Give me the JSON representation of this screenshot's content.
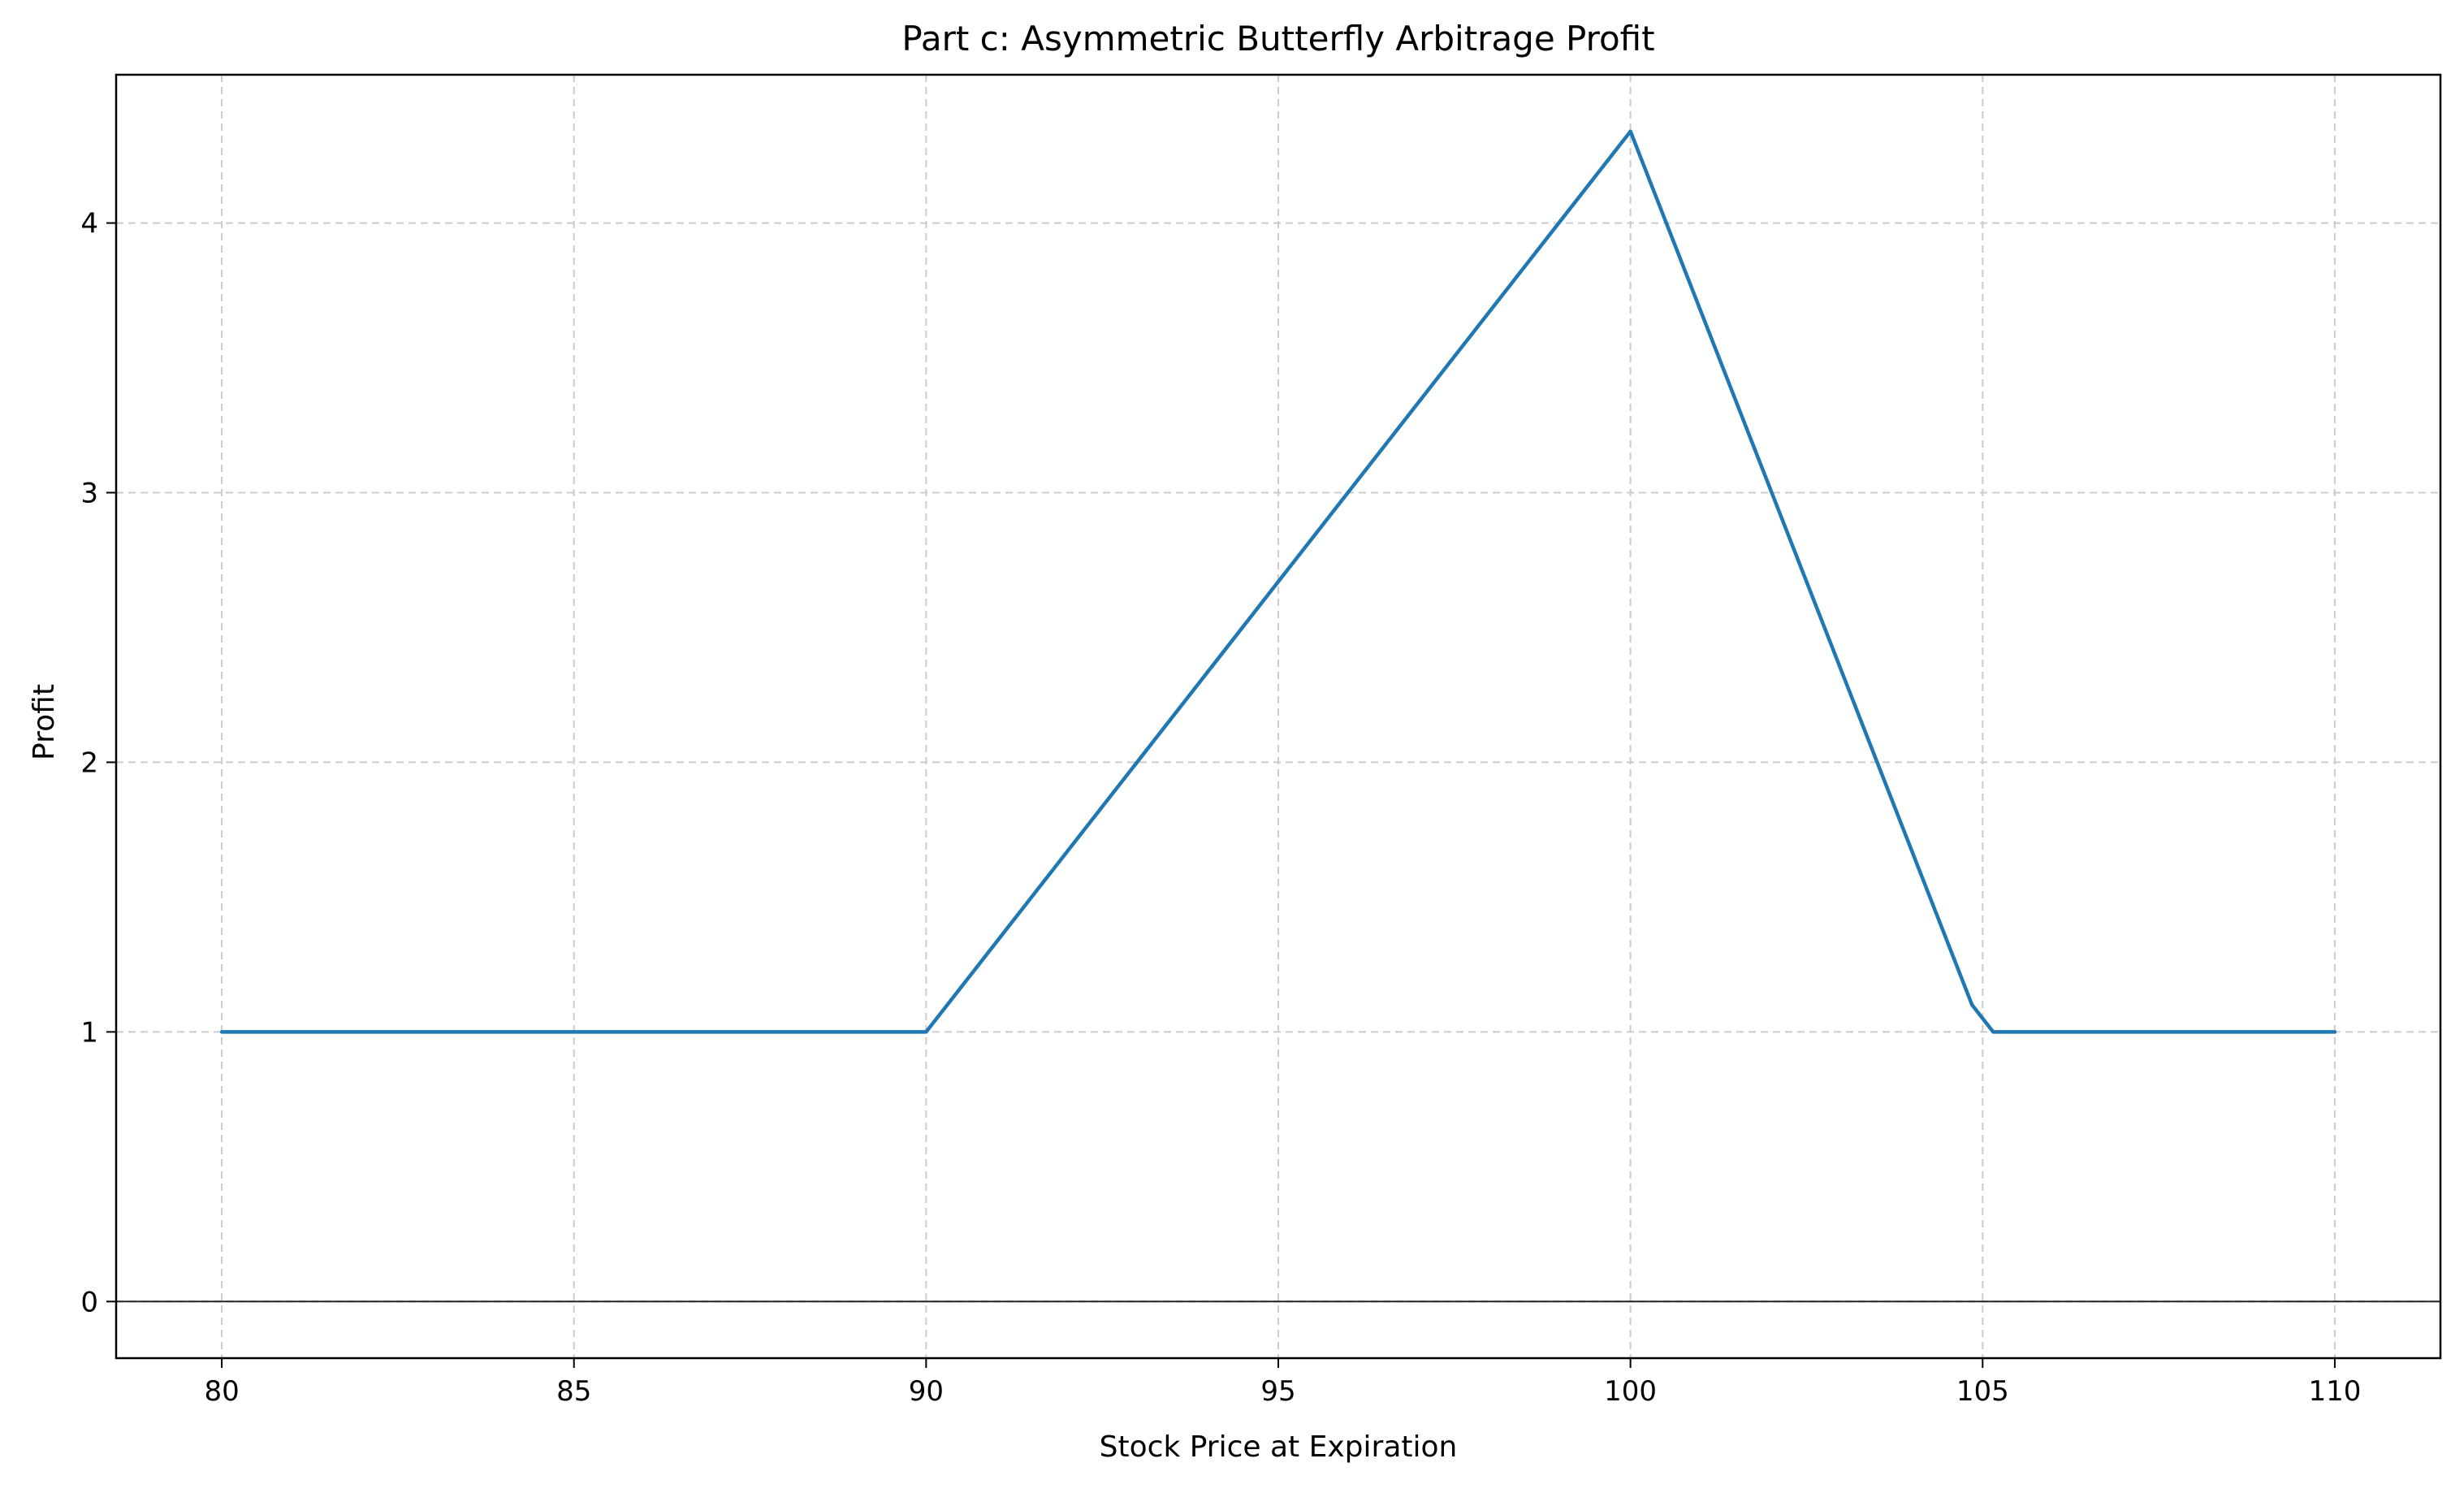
{
  "chart_data": {
    "type": "line",
    "title": "Part c: Asymmetric Butterfly Arbitrage Profit",
    "xlabel": "Stock Price at Expiration",
    "ylabel": "Profit",
    "xlim": [
      78.5,
      111.5
    ],
    "ylim": [
      -0.21,
      4.55
    ],
    "xticks": [
      80,
      85,
      90,
      95,
      100,
      105,
      110
    ],
    "yticks": [
      0,
      1,
      2,
      3,
      4
    ],
    "grid": true,
    "grid_style": "dashed",
    "zero_line": true,
    "series": [
      {
        "color": "#1f77b4",
        "x": [
          80,
          90,
          100,
          104.85,
          105.15,
          110
        ],
        "y": [
          1.0,
          1.0,
          4.34,
          1.1,
          1.0,
          1.0
        ]
      }
    ]
  },
  "colors": {
    "line": "#1f77b4",
    "grid": "#cccccc",
    "axes": "#000000",
    "zero_line": "#000000"
  }
}
